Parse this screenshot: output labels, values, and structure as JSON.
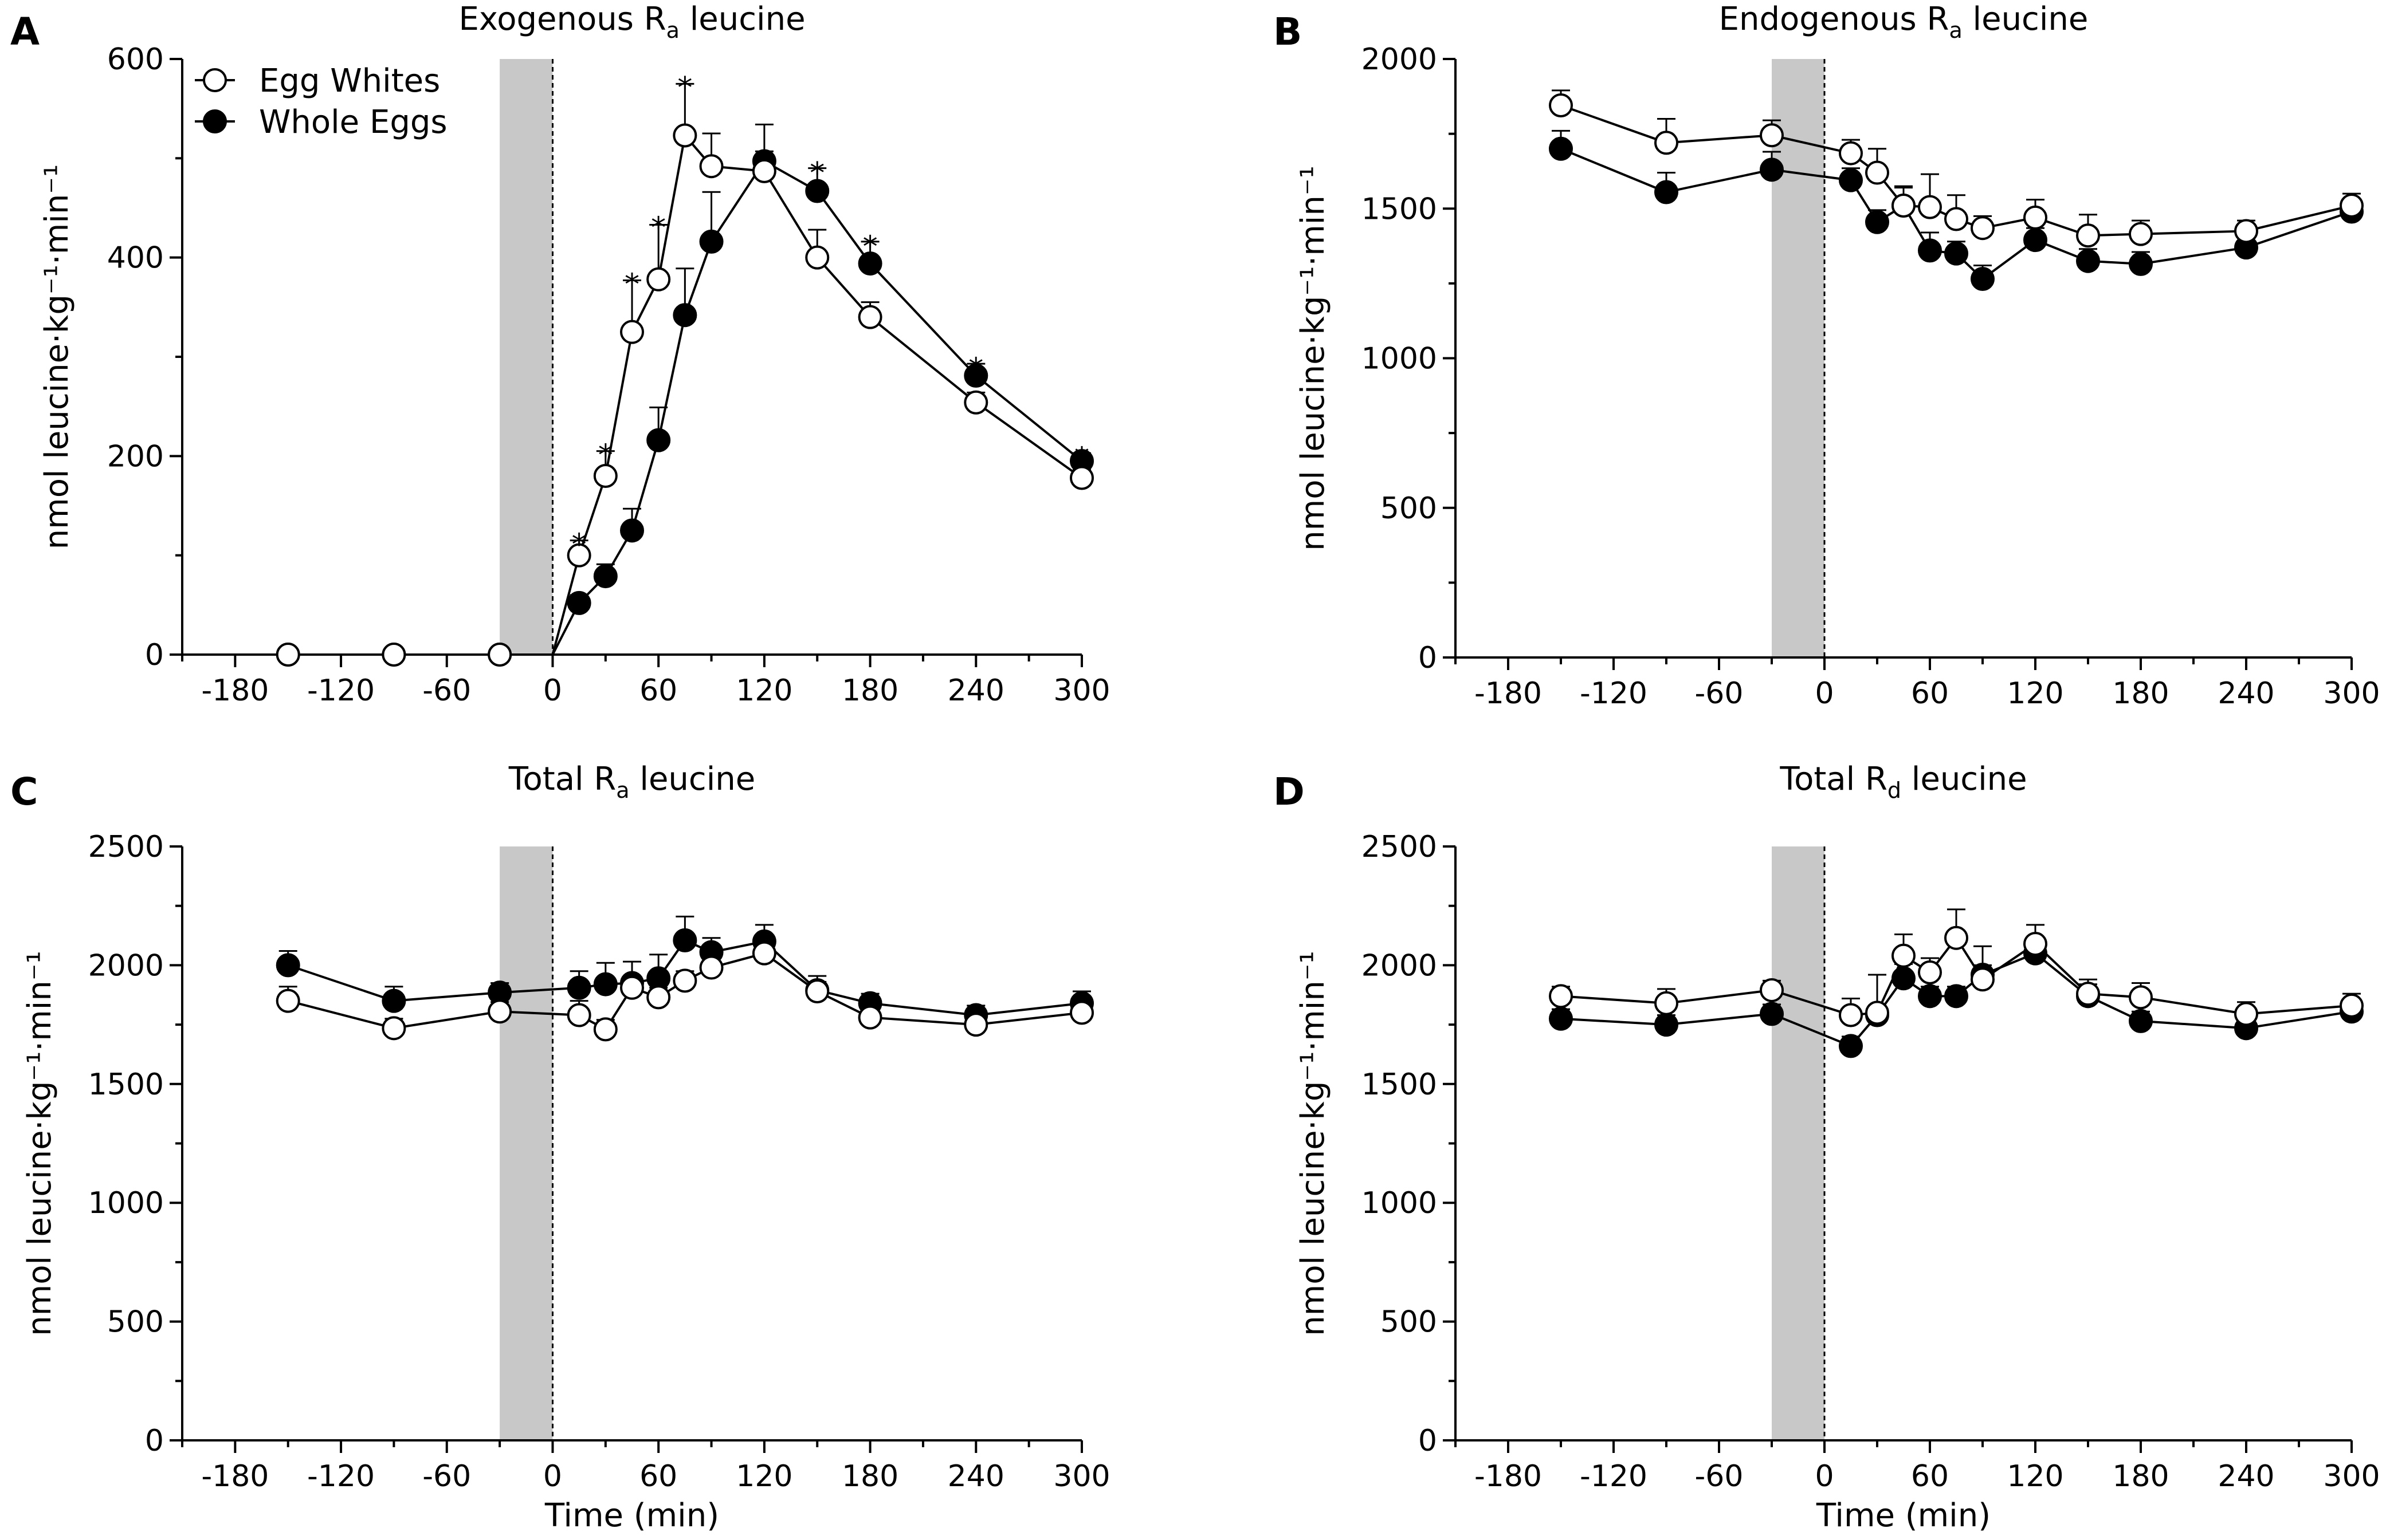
{
  "legend": {
    "items": [
      {
        "label": "Egg Whites",
        "marker": "open-circle"
      },
      {
        "label": "Whole Eggs",
        "marker": "filled-circle"
      }
    ]
  },
  "colors": {
    "line": "#000000",
    "shade": "#c8c8c8",
    "background": "#ffffff"
  },
  "chart_data": [
    {
      "panel": "A",
      "type": "line",
      "title": {
        "main": "Exogenous R",
        "sub": "a",
        "rest": " leucine"
      },
      "ylabel": "nmol leucine·kg⁻¹·min⁻¹",
      "xlabel": "",
      "xlim": [
        -210,
        300
      ],
      "ylim": [
        0,
        600
      ],
      "xticks": [
        -180,
        -120,
        -60,
        0,
        60,
        120,
        180,
        240,
        300
      ],
      "yticks": [
        0,
        200,
        400,
        600
      ],
      "shaded_interval": [
        -30,
        0
      ],
      "dashed_line_x": 0,
      "series": [
        {
          "name": "Egg Whites",
          "marker": "open",
          "x": [
            -150,
            -90,
            -30,
            0,
            15,
            30,
            45,
            60,
            75,
            90,
            120,
            150,
            180,
            240,
            300
          ],
          "y": [
            0,
            0,
            0,
            0,
            100,
            180,
            325,
            378,
            523,
            492,
            487,
            400,
            340,
            254,
            178
          ],
          "err": [
            0,
            0,
            0,
            0,
            15,
            25,
            52,
            55,
            52,
            33,
            20,
            28,
            15,
            10,
            8
          ]
        },
        {
          "name": "Whole Eggs",
          "marker": "filled",
          "x": [
            -150,
            -90,
            -30,
            0,
            15,
            30,
            45,
            60,
            75,
            90,
            120,
            150,
            180,
            240,
            300
          ],
          "y": [
            0,
            0,
            0,
            0,
            52,
            79,
            125,
            216,
            342,
            416,
            497,
            467,
            394,
            281,
            195
          ],
          "err": [
            0,
            0,
            0,
            0,
            8,
            12,
            22,
            33,
            47,
            50,
            37,
            23,
            22,
            12,
            8
          ]
        }
      ],
      "annotations": [
        {
          "text": "*",
          "x": 15,
          "y": 118
        },
        {
          "text": "*",
          "x": 30,
          "y": 208
        },
        {
          "text": "*",
          "x": 45,
          "y": 380
        },
        {
          "text": "*",
          "x": 60,
          "y": 437
        },
        {
          "text": "*",
          "x": 75,
          "y": 578
        },
        {
          "text": "*",
          "x": 150,
          "y": 492
        },
        {
          "text": "*",
          "x": 180,
          "y": 418
        },
        {
          "text": "*",
          "x": 240,
          "y": 295
        },
        {
          "text": "*",
          "x": 300,
          "y": 205
        }
      ]
    },
    {
      "panel": "B",
      "type": "line",
      "title": {
        "main": "Endogenous R",
        "sub": "a",
        "rest": " leucine"
      },
      "ylabel": "nmol leucine·kg⁻¹·min⁻¹",
      "xlabel": "",
      "xlim": [
        -210,
        300
      ],
      "ylim": [
        0,
        2000
      ],
      "xticks": [
        -180,
        -120,
        -60,
        0,
        60,
        120,
        180,
        240,
        300
      ],
      "yticks": [
        0,
        500,
        1000,
        1500,
        2000
      ],
      "shaded_interval": [
        -30,
        0
      ],
      "dashed_line_x": 0,
      "series": [
        {
          "name": "Egg Whites",
          "marker": "open",
          "x": [
            -150,
            -90,
            -30,
            15,
            30,
            45,
            60,
            75,
            90,
            120,
            150,
            180,
            240,
            300
          ],
          "y": [
            1845,
            1720,
            1745,
            1685,
            1620,
            1510,
            1505,
            1465,
            1435,
            1470,
            1410,
            1415,
            1425,
            1510
          ],
          "err": [
            50,
            80,
            50,
            45,
            80,
            60,
            110,
            80,
            40,
            60,
            70,
            45,
            35,
            40
          ]
        },
        {
          "name": "Whole Eggs",
          "marker": "filled",
          "x": [
            -150,
            -90,
            -30,
            15,
            30,
            45,
            60,
            75,
            90,
            120,
            150,
            180,
            240,
            300
          ],
          "y": [
            1700,
            1555,
            1630,
            1595,
            1455,
            1510,
            1360,
            1350,
            1265,
            1395,
            1325,
            1315,
            1370,
            1490
          ],
          "err": [
            60,
            65,
            60,
            40,
            40,
            65,
            60,
            40,
            45,
            40,
            40,
            40,
            40,
            40
          ]
        }
      ]
    },
    {
      "panel": "C",
      "type": "line",
      "title": {
        "main": "Total R",
        "sub": "a",
        "rest": " leucine"
      },
      "ylabel": "nmol leucine·kg⁻¹·min⁻¹",
      "xlabel": "Time (min)",
      "xlim": [
        -210,
        300
      ],
      "ylim": [
        0,
        2500
      ],
      "xticks": [
        -180,
        -120,
        -60,
        0,
        60,
        120,
        180,
        240,
        300
      ],
      "yticks": [
        0,
        500,
        1000,
        1500,
        2000,
        2500
      ],
      "shaded_interval": [
        -30,
        0
      ],
      "dashed_line_x": 0,
      "series": [
        {
          "name": "Egg Whites",
          "marker": "open",
          "x": [
            -150,
            -90,
            -30,
            15,
            30,
            45,
            60,
            75,
            90,
            120,
            150,
            180,
            240,
            300
          ],
          "y": [
            1850,
            1735,
            1805,
            1790,
            1730,
            1905,
            1865,
            1935,
            1990,
            2050,
            1890,
            1780,
            1750,
            1800
          ],
          "err": [
            60,
            40,
            40,
            60,
            40,
            40,
            40,
            40,
            40,
            40,
            40,
            40,
            40,
            40
          ]
        },
        {
          "name": "Whole Eggs",
          "marker": "filled",
          "x": [
            -150,
            -90,
            -30,
            15,
            30,
            45,
            60,
            75,
            90,
            120,
            150,
            180,
            240,
            300
          ],
          "y": [
            2000,
            1850,
            1885,
            1905,
            1920,
            1925,
            1945,
            2105,
            2055,
            2100,
            1895,
            1840,
            1790,
            1840
          ],
          "err": [
            60,
            60,
            40,
            70,
            90,
            90,
            100,
            100,
            60,
            70,
            60,
            40,
            40,
            50
          ]
        }
      ]
    },
    {
      "panel": "D",
      "type": "line",
      "title": {
        "main": "Total R",
        "sub": "d",
        "rest": " leucine"
      },
      "ylabel": "nmol leucine·kg⁻¹·min⁻¹",
      "xlabel": "Time (min)",
      "xlim": [
        -210,
        300
      ],
      "ylim": [
        0,
        2500
      ],
      "xticks": [
        -180,
        -120,
        -60,
        0,
        60,
        120,
        180,
        240,
        300
      ],
      "yticks": [
        0,
        500,
        1000,
        1500,
        2000,
        2500
      ],
      "shaded_interval": [
        -30,
        0
      ],
      "dashed_line_x": 0,
      "series": [
        {
          "name": "Egg Whites",
          "marker": "open",
          "x": [
            -150,
            -90,
            -30,
            15,
            30,
            45,
            60,
            75,
            90,
            120,
            150,
            180,
            240,
            300
          ],
          "y": [
            1870,
            1840,
            1895,
            1790,
            1800,
            2040,
            1970,
            2115,
            1940,
            2090,
            1880,
            1865,
            1795,
            1830
          ],
          "err": [
            40,
            60,
            40,
            70,
            160,
            90,
            60,
            120,
            140,
            80,
            60,
            60,
            50,
            50
          ]
        },
        {
          "name": "Whole Eggs",
          "marker": "filled",
          "x": [
            -150,
            -90,
            -30,
            15,
            30,
            45,
            60,
            75,
            90,
            120,
            150,
            180,
            240,
            300
          ],
          "y": [
            1775,
            1750,
            1795,
            1660,
            1790,
            1945,
            1870,
            1870,
            1960,
            2050,
            1870,
            1765,
            1735,
            1805
          ],
          "err": [
            40,
            40,
            40,
            40,
            40,
            60,
            40,
            40,
            40,
            50,
            50,
            40,
            40,
            40
          ]
        }
      ]
    }
  ]
}
